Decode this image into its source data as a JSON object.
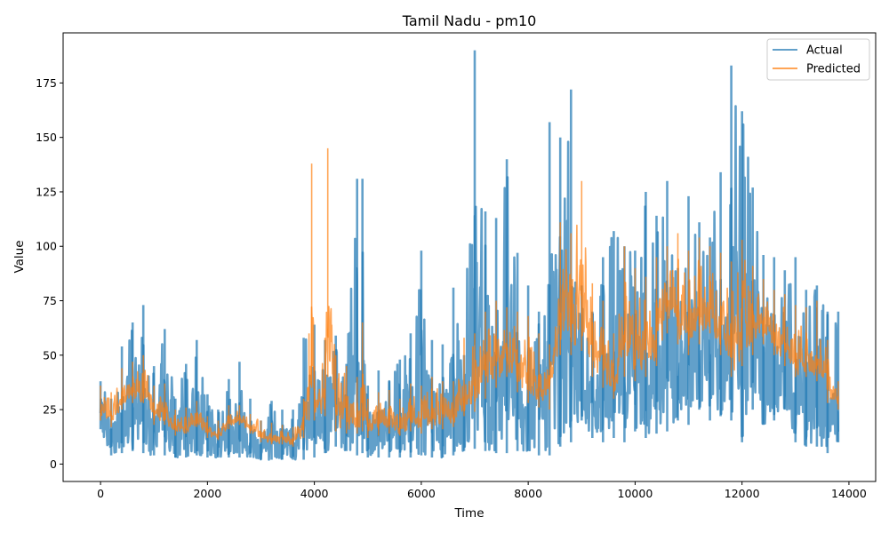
{
  "chart_data": {
    "type": "line",
    "title": "Tamil Nadu - pm10",
    "xlabel": "Time",
    "ylabel": "Value",
    "xlim": [
      -700,
      14500
    ],
    "ylim": [
      -8,
      198
    ],
    "xticks": [
      0,
      2000,
      4000,
      6000,
      8000,
      10000,
      12000,
      14000
    ],
    "yticks": [
      0,
      25,
      50,
      75,
      100,
      125,
      150,
      175
    ],
    "legend": {
      "placement": "top-right"
    },
    "grid": false,
    "series": [
      {
        "name": "Actual",
        "color": "#1f77b4",
        "opacity": 0.7,
        "envelope_note": "approx. band of values per time bucket (time, min, max)",
        "x": [
          0,
          200,
          400,
          600,
          800,
          1000,
          1200,
          1400,
          1600,
          1800,
          2000,
          2200,
          2400,
          2600,
          2800,
          3000,
          3200,
          3400,
          3600,
          3800,
          4000,
          4200,
          4400,
          4600,
          4800,
          4900,
          5000,
          5200,
          5400,
          5600,
          5800,
          6000,
          6200,
          6400,
          6600,
          6800,
          7000,
          7200,
          7400,
          7600,
          7800,
          8000,
          8200,
          8400,
          8600,
          8800,
          9000,
          9200,
          9400,
          9600,
          9800,
          10000,
          10200,
          10400,
          10600,
          10800,
          11000,
          11200,
          11400,
          11600,
          11800,
          12000,
          12200,
          12400,
          12600,
          12800,
          13000,
          13200,
          13400,
          13600,
          13800
        ],
        "low": [
          16,
          4,
          5,
          6,
          5,
          4,
          4,
          3,
          3,
          4,
          3,
          3,
          3,
          3,
          3,
          2,
          2,
          2,
          2,
          2,
          3,
          5,
          8,
          6,
          4,
          5,
          3,
          3,
          3,
          3,
          3,
          4,
          3,
          3,
          4,
          6,
          7,
          6,
          5,
          5,
          6,
          6,
          4,
          4,
          8,
          10,
          20,
          12,
          10,
          12,
          10,
          15,
          12,
          14,
          15,
          20,
          18,
          25,
          20,
          22,
          20,
          10,
          25,
          18,
          20,
          25,
          10,
          8,
          8,
          5,
          10
        ],
        "high": [
          38,
          30,
          54,
          65,
          73,
          45,
          62,
          30,
          46,
          57,
          32,
          25,
          39,
          47,
          30,
          20,
          29,
          25,
          25,
          58,
          64,
          57,
          59,
          46,
          131,
          131,
          36,
          43,
          38,
          48,
          60,
          98,
          57,
          55,
          81,
          50,
          190,
          116,
          113,
          140,
          97,
          82,
          70,
          157,
          150,
          172,
          82,
          70,
          95,
          107,
          100,
          98,
          125,
          114,
          130,
          90,
          123,
          111,
          104,
          134,
          183,
          162,
          127,
          96,
          95,
          89,
          95,
          80,
          82,
          70,
          70
        ]
      },
      {
        "name": "Predicted",
        "color": "#ff7f0e",
        "opacity": 0.7,
        "envelope_note": "approx. band of values per time bucket (time, min, max)",
        "x": [
          0,
          200,
          400,
          600,
          800,
          1000,
          1200,
          1400,
          1600,
          1800,
          2000,
          2200,
          2400,
          2600,
          2800,
          3000,
          3200,
          3400,
          3600,
          3800,
          3900,
          3950,
          4000,
          4200,
          4250,
          4400,
          4600,
          4800,
          4900,
          5000,
          5200,
          5400,
          5600,
          5800,
          6000,
          6200,
          6400,
          6600,
          6800,
          7000,
          7200,
          7400,
          7600,
          7800,
          8000,
          8200,
          8400,
          8600,
          8800,
          9000,
          9200,
          9400,
          9600,
          9800,
          10000,
          10200,
          10400,
          10600,
          10800,
          11000,
          11200,
          11400,
          11600,
          11800,
          12000,
          12200,
          12400,
          12600,
          12800,
          13000,
          13200,
          13400,
          13600,
          13800
        ],
        "low": [
          20,
          17,
          25,
          28,
          28,
          18,
          18,
          13,
          14,
          17,
          12,
          11,
          16,
          18,
          14,
          10,
          9,
          9,
          8,
          12,
          20,
          35,
          20,
          22,
          40,
          15,
          14,
          14,
          15,
          12,
          13,
          14,
          13,
          15,
          14,
          16,
          16,
          17,
          22,
          24,
          30,
          35,
          40,
          33,
          28,
          26,
          25,
          50,
          50,
          52,
          40,
          35,
          30,
          40,
          38,
          40,
          45,
          60,
          55,
          50,
          55,
          60,
          50,
          40,
          45,
          50,
          55,
          50,
          45,
          40,
          40,
          38,
          28,
          25
        ],
        "high": [
          36,
          33,
          44,
          47,
          50,
          36,
          37,
          25,
          26,
          29,
          22,
          20,
          27,
          27,
          23,
          20,
          19,
          18,
          17,
          30,
          60,
          138,
          45,
          58,
          145,
          50,
          45,
          40,
          65,
          30,
          33,
          34,
          30,
          37,
          36,
          40,
          38,
          38,
          58,
          60,
          70,
          75,
          72,
          70,
          68,
          60,
          55,
          111,
          106,
          130,
          83,
          75,
          60,
          100,
          90,
          86,
          95,
          100,
          106,
          98,
          104,
          100,
          97,
          93,
          103,
          91,
          85,
          80,
          78,
          73,
          72,
          75,
          57,
          38
        ]
      }
    ]
  }
}
